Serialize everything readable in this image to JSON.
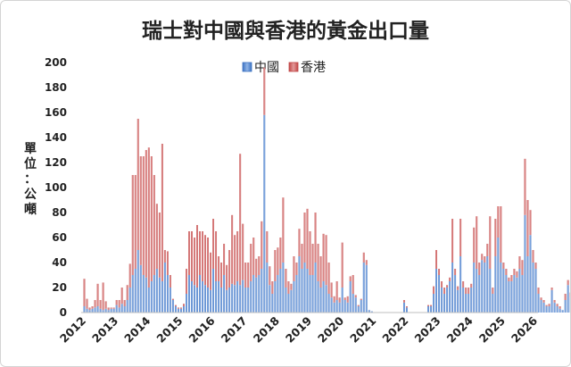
{
  "chart_data": {
    "type": "bar",
    "stacked": true,
    "title": "瑞士對中國與香港的黃金出口量",
    "ylabel": "單位：公噸",
    "xlabel": "",
    "ylim": [
      0,
      200
    ],
    "y_ticks": [
      0,
      20,
      40,
      60,
      80,
      100,
      120,
      140,
      160,
      180,
      200
    ],
    "x_ticks": [
      "2012",
      "2013",
      "2014",
      "2015",
      "2016",
      "2017",
      "2018",
      "2019",
      "2020",
      "2021",
      "2022",
      "2023",
      "2024",
      "2025",
      "2026"
    ],
    "legend_position": "top-center",
    "grid": false,
    "colors": {
      "中國": "#5b8ed6",
      "香港": "#d65b5b"
    },
    "x_start": "2012-01",
    "series": [
      {
        "name": "中國",
        "values": [
          5,
          3,
          2,
          3,
          4,
          5,
          3,
          2,
          3,
          2,
          3,
          3,
          6,
          4,
          7,
          5,
          10,
          20,
          30,
          35,
          50,
          38,
          30,
          28,
          20,
          25,
          30,
          35,
          28,
          25,
          40,
          30,
          20,
          10,
          5,
          3,
          3,
          5,
          15,
          30,
          25,
          22,
          20,
          30,
          25,
          22,
          20,
          18,
          35,
          25,
          25,
          20,
          30,
          18,
          20,
          23,
          22,
          25,
          22,
          26,
          20,
          20,
          25,
          30,
          28,
          30,
          35,
          158,
          40,
          22,
          15,
          25,
          30,
          35,
          40,
          20,
          15,
          18,
          25,
          30,
          45,
          35,
          40,
          35,
          30,
          30,
          40,
          25,
          20,
          25,
          22,
          15,
          12,
          8,
          10,
          8,
          20,
          10,
          8,
          25,
          15,
          12,
          5,
          10,
          40,
          38,
          2,
          1,
          0,
          0,
          0,
          0,
          0,
          0,
          0,
          0,
          0,
          0,
          0,
          8,
          4,
          0,
          0,
          0,
          0,
          0,
          0,
          0,
          5,
          5,
          15,
          35,
          30,
          20,
          15,
          20,
          25,
          40,
          30,
          18,
          45,
          20,
          15,
          15,
          20,
          40,
          35,
          30,
          42,
          40,
          45,
          35,
          15,
          45,
          60,
          40,
          35,
          30,
          25,
          25,
          30,
          28,
          35,
          30,
          78,
          45,
          62,
          40,
          35,
          15,
          10,
          8,
          5,
          5,
          18,
          8,
          5,
          3,
          2,
          10,
          22,
          12,
          8,
          10,
          8
        ]
      },
      {
        "name": "香港",
        "values": [
          22,
          8,
          2,
          2,
          6,
          18,
          7,
          22,
          6,
          2,
          1,
          1,
          4,
          6,
          13,
          5,
          12,
          19,
          80,
          75,
          105,
          87,
          95,
          102,
          112,
          100,
          80,
          52,
          52,
          110,
          10,
          19,
          10,
          1,
          1,
          1,
          1,
          2,
          20,
          35,
          40,
          38,
          50,
          35,
          40,
          40,
          40,
          30,
          40,
          40,
          20,
          20,
          25,
          20,
          30,
          55,
          40,
          40,
          105,
          45,
          20,
          20,
          30,
          30,
          15,
          15,
          38,
          38,
          25,
          15,
          10,
          25,
          22,
          25,
          52,
          15,
          10,
          5,
          20,
          10,
          22,
          20,
          40,
          48,
          35,
          25,
          40,
          30,
          25,
          38,
          40,
          25,
          12,
          5,
          15,
          4,
          36,
          2,
          5,
          4,
          15,
          2,
          1,
          1,
          8,
          4,
          0,
          0,
          0,
          0,
          0,
          0,
          0,
          0,
          0,
          0,
          0,
          0,
          0,
          2,
          1,
          0,
          0,
          0,
          0,
          0,
          0,
          0,
          1,
          1,
          6,
          15,
          5,
          5,
          5,
          2,
          3,
          35,
          5,
          3,
          30,
          5,
          5,
          5,
          3,
          28,
          42,
          10,
          5,
          5,
          10,
          42,
          5,
          30,
          25,
          45,
          5,
          5,
          3,
          5,
          5,
          5,
          10,
          12,
          45,
          45,
          20,
          10,
          5,
          5,
          2,
          2,
          1,
          2,
          2,
          2,
          2,
          2,
          0,
          5,
          4,
          4,
          3,
          6,
          6
        ]
      }
    ]
  }
}
